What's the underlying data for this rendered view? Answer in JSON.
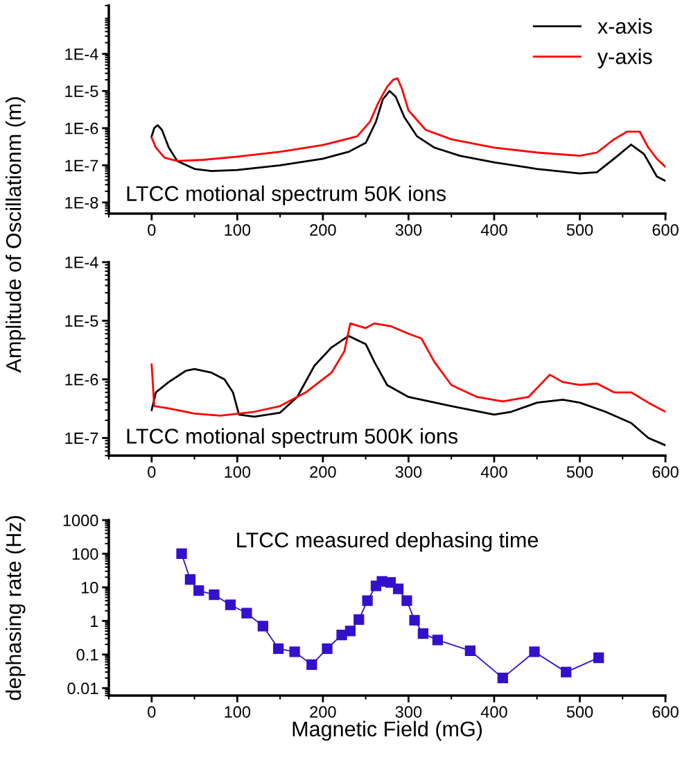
{
  "chart_data": [
    {
      "type": "line",
      "ylabel": "Amplitude of Oscillationm (m)",
      "annotations": [
        "LTCC motional spectrum 50K ions"
      ],
      "log": "y",
      "legend": "top right",
      "xlim": [
        -50,
        600
      ],
      "xticks": [
        0,
        100,
        200,
        300,
        400,
        500,
        600
      ],
      "ylim": [
        5e-09,
        0.002
      ],
      "yticks": [
        {
          "value": 1e-08,
          "label": "1E-8"
        },
        {
          "value": 1e-07,
          "label": "1E-7"
        },
        {
          "value": 1e-06,
          "label": "1E-6"
        },
        {
          "value": 1e-05,
          "label": "1E-5"
        },
        {
          "value": 0.0001,
          "label": "1E-4"
        }
      ],
      "series": [
        {
          "name": "x-axis",
          "color": "#000000",
          "x": [
            0,
            3,
            7,
            12,
            20,
            30,
            50,
            70,
            100,
            150,
            200,
            230,
            250,
            262,
            270,
            278,
            285,
            295,
            310,
            330,
            360,
            400,
            450,
            500,
            520,
            540,
            560,
            575,
            590,
            600
          ],
          "values": [
            6e-07,
            1e-06,
            1.2e-06,
            9e-07,
            3e-07,
            1.3e-07,
            8e-08,
            7e-08,
            7.5e-08,
            1e-07,
            1.5e-07,
            2.3e-07,
            4e-07,
            1.5e-06,
            6e-06,
            1e-05,
            7e-06,
            2e-06,
            6e-07,
            3e-07,
            1.8e-07,
            1.2e-07,
            8e-08,
            6e-08,
            6.5e-08,
            1.5e-07,
            3.6e-07,
            2e-07,
            5e-08,
            3.8e-08
          ]
        },
        {
          "name": "y-axis",
          "color": "#ff0000",
          "x": [
            0,
            5,
            15,
            30,
            60,
            100,
            150,
            200,
            240,
            255,
            265,
            275,
            282,
            287,
            292,
            300,
            320,
            350,
            400,
            450,
            500,
            520,
            540,
            555,
            570,
            580,
            590,
            600
          ],
          "values": [
            5.5e-07,
            3e-07,
            1.6e-07,
            1.3e-07,
            1.4e-07,
            1.7e-07,
            2.3e-07,
            3.5e-07,
            6e-07,
            1.5e-06,
            5e-06,
            1.3e-05,
            2e-05,
            2.2e-05,
            1.2e-05,
            3e-06,
            9e-07,
            5e-07,
            3e-07,
            2.2e-07,
            1.8e-07,
            2.2e-07,
            5e-07,
            8e-07,
            8e-07,
            3e-07,
            1.5e-07,
            9e-08
          ]
        }
      ]
    },
    {
      "type": "line",
      "annotations": [
        "LTCC motional spectrum 500K ions"
      ],
      "log": "y",
      "xlim": [
        -50,
        600
      ],
      "xticks": [
        0,
        100,
        200,
        300,
        400,
        500,
        600
      ],
      "ylim": [
        5e-08,
        0.0001
      ],
      "yticks": [
        {
          "value": 1e-07,
          "label": "1E-7"
        },
        {
          "value": 1e-06,
          "label": "1E-6"
        },
        {
          "value": 1e-05,
          "label": "1E-5"
        },
        {
          "value": 0.0001,
          "label": "1E-4"
        }
      ],
      "series": [
        {
          "color": "#000000",
          "x": [
            0,
            5,
            20,
            40,
            50,
            70,
            85,
            95,
            102,
            120,
            150,
            170,
            190,
            210,
            230,
            250,
            260,
            275,
            300,
            350,
            400,
            420,
            450,
            480,
            500,
            530,
            560,
            580,
            600
          ],
          "values": [
            3e-07,
            6e-07,
            9e-07,
            1.4e-06,
            1.5e-06,
            1.3e-06,
            1e-06,
            6e-07,
            2.5e-07,
            2.3e-07,
            2.7e-07,
            5e-07,
            1.7e-06,
            3.5e-06,
            5.5e-06,
            4e-06,
            2e-06,
            8e-07,
            5e-07,
            3.5e-07,
            2.5e-07,
            2.8e-07,
            4e-07,
            4.5e-07,
            4e-07,
            2.8e-07,
            1.8e-07,
            1e-07,
            7.5e-08
          ]
        },
        {
          "color": "#ff0000",
          "x": [
            0,
            3,
            20,
            50,
            80,
            120,
            150,
            180,
            210,
            225,
            232,
            250,
            260,
            280,
            300,
            315,
            330,
            350,
            380,
            410,
            440,
            465,
            480,
            500,
            520,
            540,
            560,
            580,
            600
          ],
          "values": [
            1.8e-06,
            3.5e-07,
            3.2e-07,
            2.6e-07,
            2.4e-07,
            2.8e-07,
            3.5e-07,
            6e-07,
            1.3e-06,
            3e-06,
            9e-06,
            7.5e-06,
            9e-06,
            8e-06,
            6e-06,
            5e-06,
            2e-06,
            8e-07,
            5e-07,
            4.2e-07,
            5e-07,
            1.2e-06,
            9e-07,
            8e-07,
            8.5e-07,
            6e-07,
            6e-07,
            4e-07,
            2.8e-07
          ]
        }
      ]
    },
    {
      "type": "line",
      "ylabel": "dephasing rate (Hz)",
      "xlabel": "Magnetic Field (mG)",
      "annotations": [
        "LTCC measured dephasing time"
      ],
      "log": "y",
      "marker": "square",
      "xlim": [
        -50,
        600
      ],
      "xticks": [
        0,
        100,
        200,
        300,
        400,
        500,
        600
      ],
      "ylim": [
        0.006,
        1000
      ],
      "yticks": [
        0.01,
        0.1,
        1,
        10,
        100,
        1000
      ],
      "series": [
        {
          "color": "#3311cc",
          "x": [
            35,
            45,
            55,
            73,
            92,
            111,
            130,
            148,
            167,
            187,
            205,
            222,
            232,
            242,
            252,
            262,
            269,
            279,
            288,
            298,
            307,
            317,
            334,
            372,
            410,
            447,
            484,
            522
          ],
          "values": [
            100,
            17,
            8,
            6,
            3,
            1.7,
            0.7,
            0.15,
            0.12,
            0.05,
            0.15,
            0.38,
            0.5,
            1.1,
            4,
            11,
            15,
            14,
            9,
            4,
            1.05,
            0.42,
            0.27,
            0.13,
            0.02,
            0.12,
            0.03,
            0.08
          ]
        }
      ]
    }
  ]
}
